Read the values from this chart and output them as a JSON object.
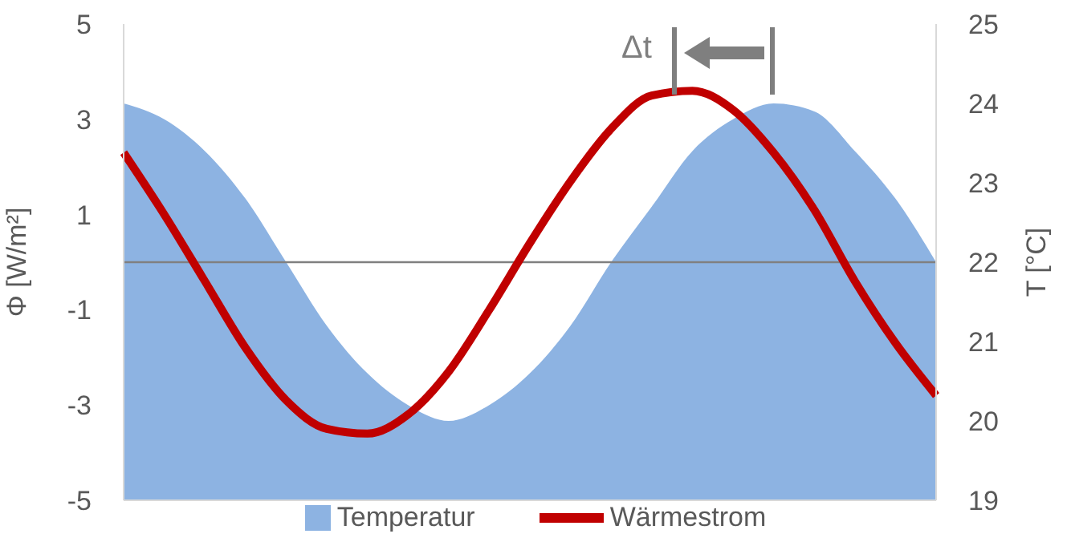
{
  "chart_data": {
    "type": "area",
    "categories": [
      null,
      null,
      null,
      null,
      null,
      null,
      null,
      null,
      null,
      null,
      null,
      null,
      null,
      null,
      null,
      null,
      null,
      null,
      null,
      null,
      null
    ],
    "series": [
      {
        "name": "Temperatur",
        "axis": "y2",
        "color": "#8db3e2",
        "values": [
          24.0,
          23.8,
          23.4,
          22.8,
          22.0,
          21.2,
          20.6,
          20.2,
          20.0,
          20.2,
          20.6,
          21.2,
          22.0,
          22.7,
          23.4,
          23.8,
          24.0,
          23.9,
          23.4,
          22.8,
          22.0
        ]
      },
      {
        "name": "Wärmestrom",
        "type": "line",
        "color": "#c00000",
        "values": [
          2.3,
          1.0,
          -0.4,
          -1.8,
          -2.9,
          -3.5,
          -3.6,
          -3.2,
          -2.3,
          -1.0,
          0.4,
          1.7,
          2.8,
          3.5,
          3.6,
          3.2,
          2.3,
          1.1,
          -0.4,
          -1.7,
          -2.8
        ]
      }
    ],
    "ylabel": "Φ [W/m²]",
    "y2label": "T [°C]",
    "ylim": [
      -5,
      5
    ],
    "yticks": [
      5,
      3,
      1,
      -1,
      -3,
      -5
    ],
    "y2lim": [
      19,
      25
    ],
    "y2ticks": [
      25,
      24,
      23,
      22,
      21,
      20,
      19
    ],
    "ref_lines": [
      {
        "axis": "y",
        "value": 0,
        "color": "#808080"
      }
    ],
    "annotations": [
      "Δt"
    ],
    "legend": "bottom"
  }
}
